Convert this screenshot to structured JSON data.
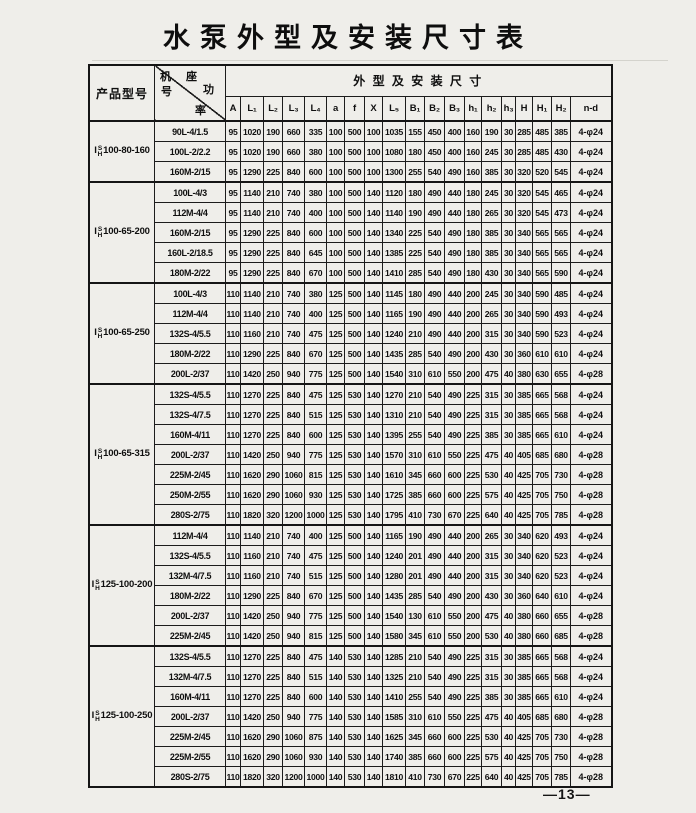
{
  "title": "水泵外型及安装尺寸表",
  "footer": {
    "page_number": "—13—"
  },
  "header": {
    "product_model": "产品型号",
    "diag": {
      "t1": "机 座",
      "t2": "号",
      "t3": "功",
      "t4": "率"
    },
    "span": "外  型  及  安  装  尺  寸",
    "columns": [
      "A",
      "L₁",
      "L₂",
      "L₃",
      "L₄",
      "a",
      "f",
      "X",
      "L₅",
      "B₁",
      "B₂",
      "B₃",
      "h₁",
      "h₂",
      "h₃",
      "H",
      "H₁",
      "H₂",
      "n-d"
    ]
  },
  "groups": [
    {
      "model": {
        "prefix": "I",
        "stack_top": "S",
        "stack_bottom": "H",
        "size": "100-80-160"
      },
      "rows": [
        [
          "90L-4/1.5",
          "95",
          "1020",
          "190",
          "660",
          "335",
          "100",
          "500",
          "100",
          "1035",
          "155",
          "450",
          "400",
          "160",
          "190",
          "30",
          "285",
          "485",
          "385",
          "4-φ24"
        ],
        [
          "100L-2/2.2",
          "95",
          "1020",
          "190",
          "660",
          "380",
          "100",
          "500",
          "100",
          "1080",
          "180",
          "450",
          "400",
          "160",
          "245",
          "30",
          "285",
          "485",
          "430",
          "4-φ24"
        ],
        [
          "160M-2/15",
          "95",
          "1290",
          "225",
          "840",
          "600",
          "100",
          "500",
          "100",
          "1300",
          "255",
          "540",
          "490",
          "160",
          "385",
          "30",
          "320",
          "520",
          "545",
          "4-φ24"
        ]
      ]
    },
    {
      "model": {
        "prefix": "I",
        "stack_top": "S",
        "stack_bottom": "H",
        "size": "100-65-200"
      },
      "rows": [
        [
          "100L-4/3",
          "95",
          "1140",
          "210",
          "740",
          "380",
          "100",
          "500",
          "140",
          "1120",
          "180",
          "490",
          "440",
          "180",
          "245",
          "30",
          "320",
          "545",
          "465",
          "4-φ24"
        ],
        [
          "112M-4/4",
          "95",
          "1140",
          "210",
          "740",
          "400",
          "100",
          "500",
          "140",
          "1140",
          "190",
          "490",
          "440",
          "180",
          "265",
          "30",
          "320",
          "545",
          "473",
          "4-φ24"
        ],
        [
          "160M-2/15",
          "95",
          "1290",
          "225",
          "840",
          "600",
          "100",
          "500",
          "140",
          "1340",
          "225",
          "540",
          "490",
          "180",
          "385",
          "30",
          "340",
          "565",
          "565",
          "4-φ24"
        ],
        [
          "160L-2/18.5",
          "95",
          "1290",
          "225",
          "840",
          "645",
          "100",
          "500",
          "140",
          "1385",
          "225",
          "540",
          "490",
          "180",
          "385",
          "30",
          "340",
          "565",
          "565",
          "4-φ24"
        ],
        [
          "180M-2/22",
          "95",
          "1290",
          "225",
          "840",
          "670",
          "100",
          "500",
          "140",
          "1410",
          "285",
          "540",
          "490",
          "180",
          "430",
          "30",
          "340",
          "565",
          "590",
          "4-φ24"
        ]
      ]
    },
    {
      "model": {
        "prefix": "I",
        "stack_top": "S",
        "stack_bottom": "H",
        "size": "100-65-250"
      },
      "rows": [
        [
          "100L-4/3",
          "110",
          "1140",
          "210",
          "740",
          "380",
          "125",
          "500",
          "140",
          "1145",
          "180",
          "490",
          "440",
          "200",
          "245",
          "30",
          "340",
          "590",
          "485",
          "4-φ24"
        ],
        [
          "112M-4/4",
          "110",
          "1140",
          "210",
          "740",
          "400",
          "125",
          "500",
          "140",
          "1165",
          "190",
          "490",
          "440",
          "200",
          "265",
          "30",
          "340",
          "590",
          "493",
          "4-φ24"
        ],
        [
          "132S-4/5.5",
          "110",
          "1160",
          "210",
          "740",
          "475",
          "125",
          "500",
          "140",
          "1240",
          "210",
          "490",
          "440",
          "200",
          "315",
          "30",
          "340",
          "590",
          "523",
          "4-φ24"
        ],
        [
          "180M-2/22",
          "110",
          "1290",
          "225",
          "840",
          "670",
          "125",
          "500",
          "140",
          "1435",
          "285",
          "540",
          "490",
          "200",
          "430",
          "30",
          "360",
          "610",
          "610",
          "4-φ24"
        ],
        [
          "200L-2/37",
          "110",
          "1420",
          "250",
          "940",
          "775",
          "125",
          "500",
          "140",
          "1540",
          "310",
          "610",
          "550",
          "200",
          "475",
          "40",
          "380",
          "630",
          "655",
          "4-φ28"
        ]
      ]
    },
    {
      "model": {
        "prefix": "I",
        "stack_top": "S",
        "stack_bottom": "H",
        "size": "100-65-315"
      },
      "rows": [
        [
          "132S-4/5.5",
          "110",
          "1270",
          "225",
          "840",
          "475",
          "125",
          "530",
          "140",
          "1270",
          "210",
          "540",
          "490",
          "225",
          "315",
          "30",
          "385",
          "665",
          "568",
          "4-φ24"
        ],
        [
          "132S-4/7.5",
          "110",
          "1270",
          "225",
          "840",
          "515",
          "125",
          "530",
          "140",
          "1310",
          "210",
          "540",
          "490",
          "225",
          "315",
          "30",
          "385",
          "665",
          "568",
          "4-φ24"
        ],
        [
          "160M-4/11",
          "110",
          "1270",
          "225",
          "840",
          "600",
          "125",
          "530",
          "140",
          "1395",
          "255",
          "540",
          "490",
          "225",
          "385",
          "30",
          "385",
          "665",
          "610",
          "4-φ24"
        ],
        [
          "200L-2/37",
          "110",
          "1420",
          "250",
          "940",
          "775",
          "125",
          "530",
          "140",
          "1570",
          "310",
          "610",
          "550",
          "225",
          "475",
          "40",
          "405",
          "685",
          "680",
          "4-φ28"
        ],
        [
          "225M-2/45",
          "110",
          "1620",
          "290",
          "1060",
          "815",
          "125",
          "530",
          "140",
          "1610",
          "345",
          "660",
          "600",
          "225",
          "530",
          "40",
          "425",
          "705",
          "730",
          "4-φ28"
        ],
        [
          "250M-2/55",
          "110",
          "1620",
          "290",
          "1060",
          "930",
          "125",
          "530",
          "140",
          "1725",
          "385",
          "660",
          "600",
          "225",
          "575",
          "40",
          "425",
          "705",
          "750",
          "4-φ28"
        ],
        [
          "280S-2/75",
          "110",
          "1820",
          "320",
          "1200",
          "1000",
          "125",
          "530",
          "140",
          "1795",
          "410",
          "730",
          "670",
          "225",
          "640",
          "40",
          "425",
          "705",
          "785",
          "4-φ28"
        ]
      ]
    },
    {
      "model": {
        "prefix": "I",
        "stack_top": "S",
        "stack_bottom": "H",
        "size": "125-100-200"
      },
      "rows": [
        [
          "112M-4/4",
          "110",
          "1140",
          "210",
          "740",
          "400",
          "125",
          "500",
          "140",
          "1165",
          "190",
          "490",
          "440",
          "200",
          "265",
          "30",
          "340",
          "620",
          "493",
          "4-φ24"
        ],
        [
          "132S-4/5.5",
          "110",
          "1160",
          "210",
          "740",
          "475",
          "125",
          "500",
          "140",
          "1240",
          "201",
          "490",
          "440",
          "200",
          "315",
          "30",
          "340",
          "620",
          "523",
          "4-φ24"
        ],
        [
          "132M-4/7.5",
          "110",
          "1160",
          "210",
          "740",
          "515",
          "125",
          "500",
          "140",
          "1280",
          "201",
          "490",
          "440",
          "200",
          "315",
          "30",
          "340",
          "620",
          "523",
          "4-φ24"
        ],
        [
          "180M-2/22",
          "110",
          "1290",
          "225",
          "840",
          "670",
          "125",
          "500",
          "140",
          "1435",
          "285",
          "540",
          "490",
          "200",
          "430",
          "30",
          "360",
          "640",
          "610",
          "4-φ24"
        ],
        [
          "200L-2/37",
          "110",
          "1420",
          "250",
          "940",
          "775",
          "125",
          "500",
          "140",
          "1540",
          "130",
          "610",
          "550",
          "200",
          "475",
          "40",
          "380",
          "660",
          "655",
          "4-φ28"
        ],
        [
          "225M-2/45",
          "110",
          "1420",
          "250",
          "940",
          "815",
          "125",
          "500",
          "140",
          "1580",
          "345",
          "610",
          "550",
          "200",
          "530",
          "40",
          "380",
          "660",
          "685",
          "4-φ28"
        ]
      ]
    },
    {
      "model": {
        "prefix": "I",
        "stack_top": "S",
        "stack_bottom": "H",
        "size": "125-100-250"
      },
      "rows": [
        [
          "132S-4/5.5",
          "110",
          "1270",
          "225",
          "840",
          "475",
          "140",
          "530",
          "140",
          "1285",
          "210",
          "540",
          "490",
          "225",
          "315",
          "30",
          "385",
          "665",
          "568",
          "4-φ24"
        ],
        [
          "132M-4/7.5",
          "110",
          "1270",
          "225",
          "840",
          "515",
          "140",
          "530",
          "140",
          "1325",
          "210",
          "540",
          "490",
          "225",
          "315",
          "30",
          "385",
          "665",
          "568",
          "4-φ24"
        ],
        [
          "160M-4/11",
          "110",
          "1270",
          "225",
          "840",
          "600",
          "140",
          "530",
          "140",
          "1410",
          "255",
          "540",
          "490",
          "225",
          "385",
          "30",
          "385",
          "665",
          "610",
          "4-φ24"
        ],
        [
          "200L-2/37",
          "110",
          "1420",
          "250",
          "940",
          "775",
          "140",
          "530",
          "140",
          "1585",
          "310",
          "610",
          "550",
          "225",
          "475",
          "40",
          "405",
          "685",
          "680",
          "4-φ28"
        ],
        [
          "225M-2/45",
          "110",
          "1620",
          "290",
          "1060",
          "875",
          "140",
          "530",
          "140",
          "1625",
          "345",
          "660",
          "600",
          "225",
          "530",
          "40",
          "425",
          "705",
          "730",
          "4-φ28"
        ],
        [
          "225M-2/55",
          "110",
          "1620",
          "290",
          "1060",
          "930",
          "140",
          "530",
          "140",
          "1740",
          "385",
          "660",
          "600",
          "225",
          "575",
          "40",
          "425",
          "705",
          "750",
          "4-φ28"
        ],
        [
          "280S-2/75",
          "110",
          "1820",
          "320",
          "1200",
          "1000",
          "140",
          "530",
          "140",
          "1810",
          "410",
          "730",
          "670",
          "225",
          "640",
          "40",
          "425",
          "705",
          "785",
          "4-φ28"
        ]
      ]
    }
  ]
}
